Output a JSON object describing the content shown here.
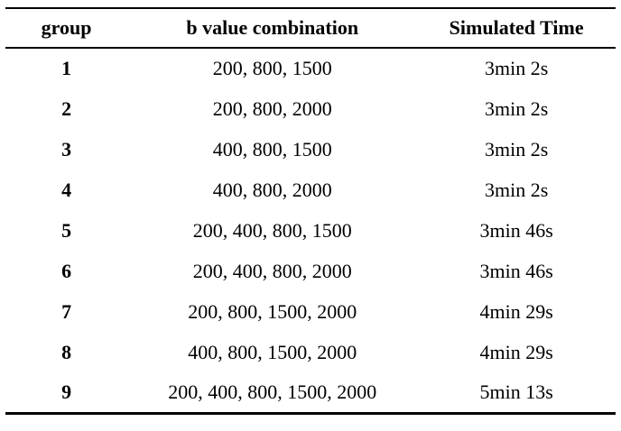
{
  "table": {
    "headers": {
      "group": "group",
      "combination": "b value combination",
      "time": "Simulated Time"
    },
    "rows": [
      {
        "group": "1",
        "combination": "200, 800, 1500",
        "time": "3min 2s"
      },
      {
        "group": "2",
        "combination": "200, 800, 2000",
        "time": "3min 2s"
      },
      {
        "group": "3",
        "combination": "400, 800, 1500",
        "time": "3min 2s"
      },
      {
        "group": "4",
        "combination": "400, 800, 2000",
        "time": "3min 2s"
      },
      {
        "group": "5",
        "combination": "200, 400, 800, 1500",
        "time": "3min 46s"
      },
      {
        "group": "6",
        "combination": "200, 400, 800, 2000",
        "time": "3min 46s"
      },
      {
        "group": "7",
        "combination": "200, 800, 1500, 2000",
        "time": "4min 29s"
      },
      {
        "group": "8",
        "combination": "400, 800, 1500, 2000",
        "time": "4min 29s"
      },
      {
        "group": "9",
        "combination": "200, 400, 800, 1500, 2000",
        "time": "5min 13s"
      }
    ],
    "colors": {
      "text": "#000000",
      "background": "#ffffff",
      "rule": "#000000"
    }
  }
}
